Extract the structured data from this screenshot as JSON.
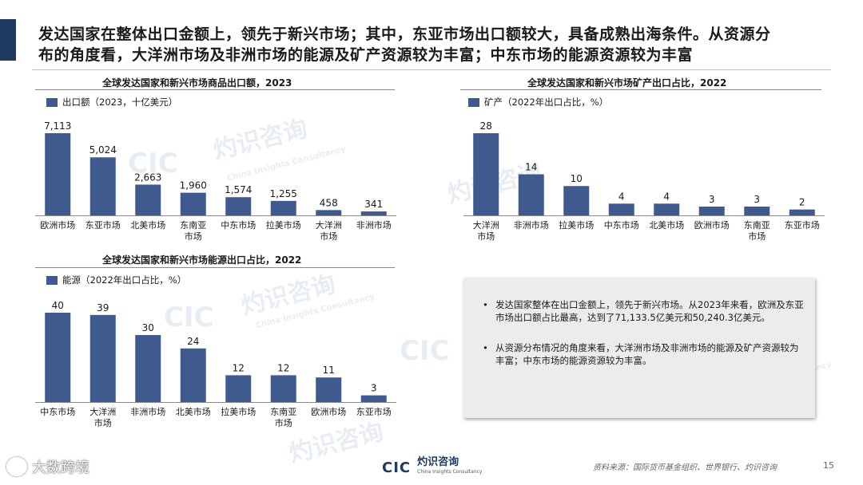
{
  "header": {
    "line1": "发达国家在整体出口金额上，领先于新兴市场；其中，东亚市场出口额较大，具备成熟出海条件。从资源分",
    "line2": "布的角度看，大洋洲市场及非洲市场的能源及矿产资源较为丰富；中东市场的能源资源较为丰富"
  },
  "colors": {
    "bar": "#3f5a8f",
    "accent": "#1f3a60"
  },
  "chart_data": [
    {
      "type": "bar",
      "title": "全球发达国家和新兴市场商品出口额，2023",
      "legend": "出口额（2023，十亿美元）",
      "categories": [
        "欧洲市场",
        "东亚市场",
        "北美市场",
        "东南亚\n市场",
        "中东市场",
        "拉美市场",
        "大洋洲\n市场",
        "非洲市场"
      ],
      "values": [
        7113,
        5024,
        2663,
        1960,
        1574,
        1255,
        458,
        341
      ],
      "value_labels": [
        "7,113",
        "5,024",
        "2,663",
        "1,960",
        "1,574",
        "1,255",
        "458",
        "341"
      ],
      "ylim": [
        0,
        7113
      ]
    },
    {
      "type": "bar",
      "title": "全球发达国家和新兴市场矿产出口占比，2022",
      "legend": "矿产（2022年出口占比，%）",
      "categories": [
        "大洋洲\n市场",
        "非洲市场",
        "拉美市场",
        "中东市场",
        "北美市场",
        "欧洲市场",
        "东南亚\n市场",
        "东亚市场"
      ],
      "values": [
        28,
        14,
        10,
        4,
        4,
        3,
        3,
        2
      ],
      "value_labels": [
        "28",
        "14",
        "10",
        "4",
        "4",
        "3",
        "3",
        "2"
      ],
      "ylim": [
        0,
        28
      ]
    },
    {
      "type": "bar",
      "title": "全球发达国家和新兴市场能源出口占比，2022",
      "legend": "能源（2022年出口占比，%）",
      "categories": [
        "中东市场",
        "大洋洲\n市场",
        "非洲市场",
        "北美市场",
        "拉美市场",
        "东南亚\n市场",
        "欧洲市场",
        "东亚市场"
      ],
      "values": [
        40,
        39,
        30,
        24,
        12,
        12,
        11,
        3
      ],
      "value_labels": [
        "40",
        "39",
        "30",
        "24",
        "12",
        "12",
        "11",
        "3"
      ],
      "ylim": [
        0,
        40
      ]
    }
  ],
  "notes": {
    "bullet1": "发达国家整体在出口金额上，领先于新兴市场。从2023年来看，欧洲及东亚市场出口额占比最高，达到了71,133.5亿美元和50,240.3亿美元。",
    "bullet2": "从资源分布情况的角度来看，大洋洲市场及非洲市场的能源及矿产资源较为丰富；中东市场的能源资源较为丰富。"
  },
  "watermark": {
    "cn": "灼识咨询",
    "en": "China Insights Consultancy",
    "abbr": "CIC"
  },
  "footer": {
    "logo_abbr": "CIC",
    "logo_cn": "灼识咨询",
    "logo_en": "China Insights Consultancy",
    "source": "资料来源：国际货币基金组织、世界银行、灼识咨询",
    "page": "15",
    "brand": "大数跨境"
  }
}
